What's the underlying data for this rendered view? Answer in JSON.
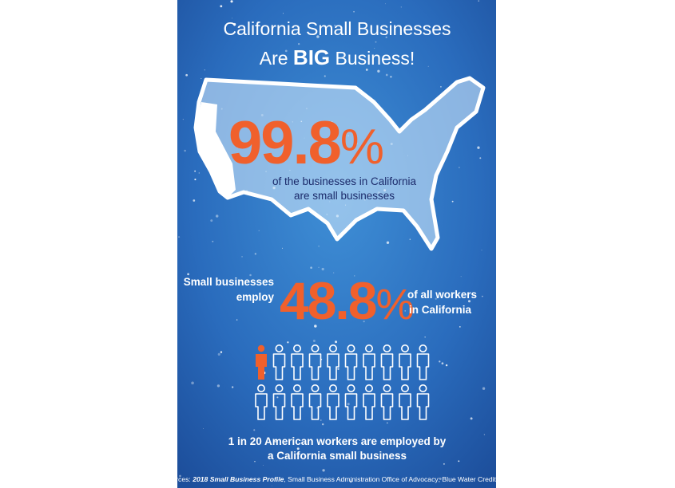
{
  "header": {
    "title_line1": "California Small Businesses",
    "title_line2": [
      "Are",
      "BIG",
      "Business!"
    ]
  },
  "stat1": {
    "number": "99.8",
    "unit": "%",
    "caption": [
      "of the businesses in California",
      "are small businesses"
    ]
  },
  "stat2": {
    "before": [
      "Small businesses",
      "employ"
    ],
    "number": "48.8",
    "unit": "%",
    "after": [
      "of all workers",
      "in California"
    ]
  },
  "footer": {
    "lines": [
      "1 in 20 American workers are employed by",
      "a California small business"
    ]
  },
  "sources": {
    "prefix": "Sources:",
    "title": "2018 Small Business Profile",
    "rest": ", Small Business Administration Office of Advocacy; Blue Water Credit LLC"
  }
}
